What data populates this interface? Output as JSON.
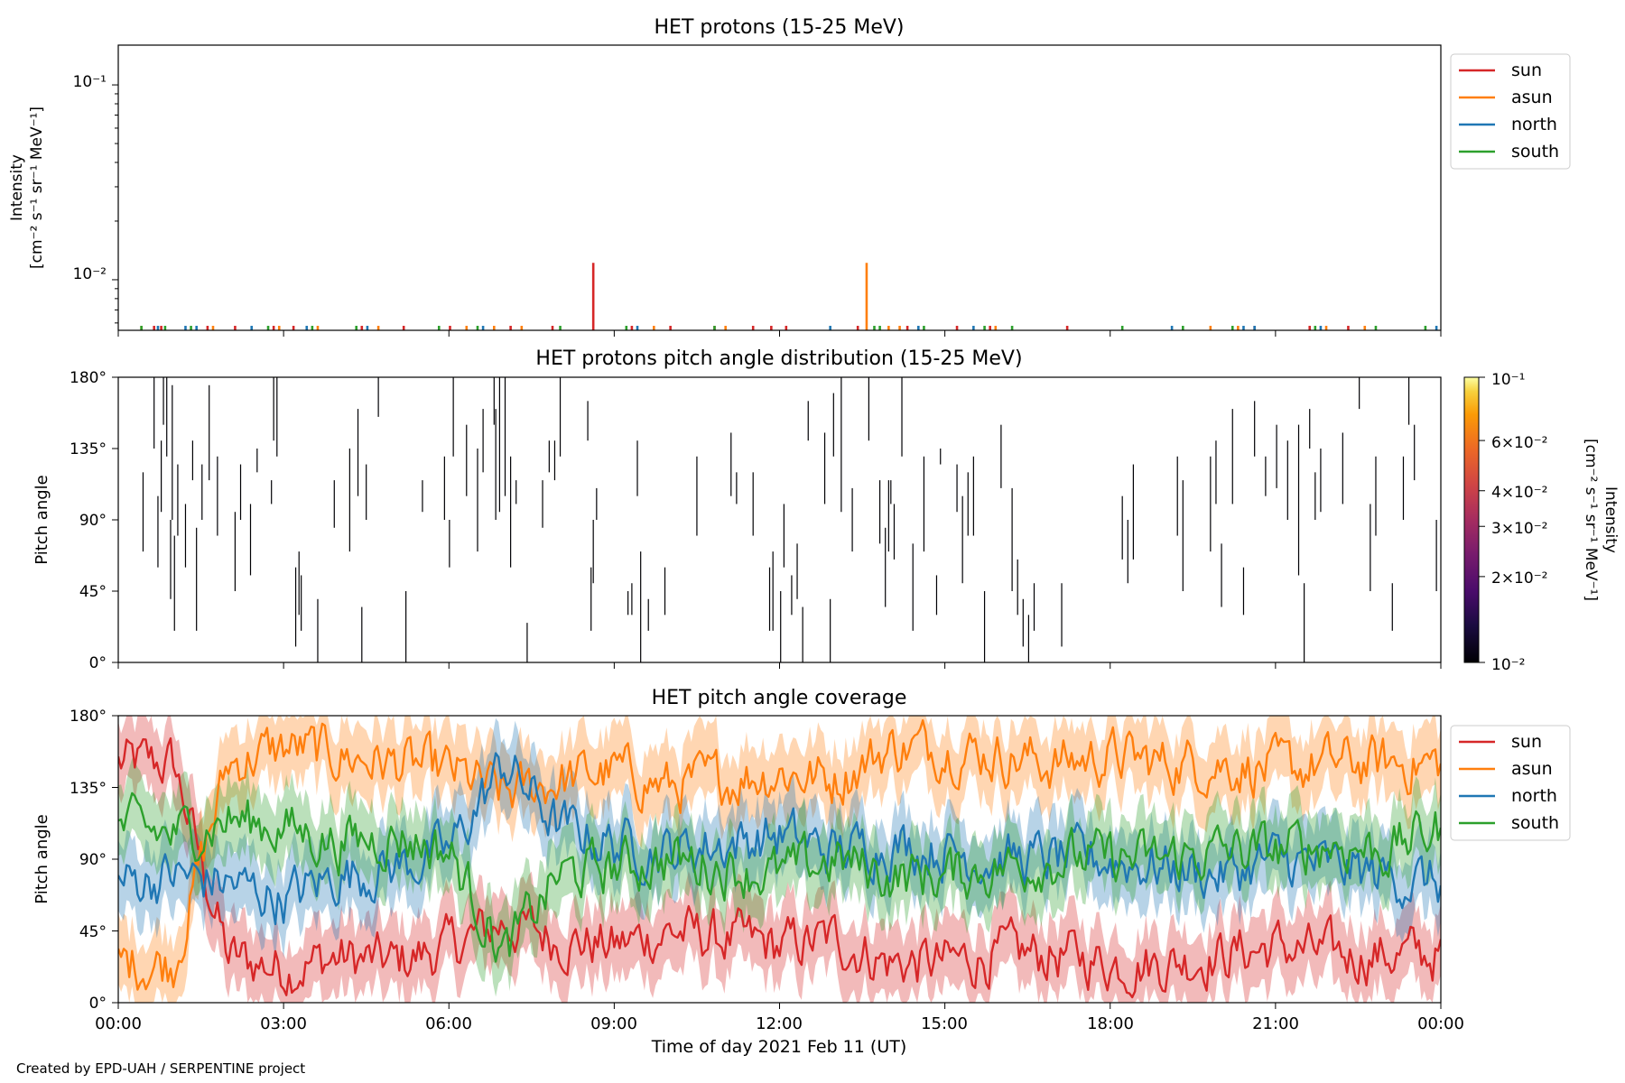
{
  "footer": "Created by EPD-UAH / SERPENTINE project",
  "chart_data": [
    {
      "type": "bar",
      "title": "HET protons (15-25 MeV)",
      "ylabel_lines": [
        "Intensity",
        "[cm⁻² s⁻¹ sr⁻¹ MeV⁻¹]"
      ],
      "yscale": "log",
      "ylim": [
        0.0055,
        0.16
      ],
      "yticks": [
        {
          "value": 0.1,
          "label": "10⁻¹"
        },
        {
          "value": 0.01,
          "label": "10⁻²"
        }
      ],
      "xlim": [
        0,
        24
      ],
      "legend": "right",
      "series": [
        {
          "name": "sun",
          "color": "#d62728",
          "x": [
            0.65,
            0.78,
            1.62,
            2.12,
            2.82,
            3.18,
            4.42,
            5.18,
            6.02,
            7.12,
            7.88,
            8.62,
            9.32,
            10.02,
            10.82,
            11.52,
            11.85,
            12.12,
            13.42,
            14.32,
            15.22,
            15.82,
            17.22,
            20.62,
            21.62,
            22.32
          ],
          "y": [
            0.0058,
            0.0058,
            0.0058,
            0.0058,
            0.0058,
            0.0058,
            0.0058,
            0.0058,
            0.0058,
            0.0058,
            0.0058,
            0.0122,
            0.0058,
            0.0058,
            0.0058,
            0.0058,
            0.0058,
            0.0058,
            0.0058,
            0.0058,
            0.0058,
            0.0058,
            0.0058,
            0.0058,
            0.0058,
            0.0058
          ]
        },
        {
          "name": "asun",
          "color": "#ff7f0e",
          "x": [
            0.42,
            1.72,
            2.92,
            3.62,
            4.72,
            6.32,
            6.82,
            7.32,
            9.72,
            11.02,
            13.58,
            13.98,
            14.18,
            15.92,
            19.82,
            20.32,
            21.92,
            22.62
          ],
          "y": [
            0.0058,
            0.0058,
            0.0058,
            0.0058,
            0.0058,
            0.0058,
            0.0058,
            0.0058,
            0.0058,
            0.0058,
            0.0122,
            0.0058,
            0.0058,
            0.0058,
            0.0058,
            0.0058,
            0.0058,
            0.0058
          ]
        },
        {
          "name": "north",
          "color": "#1f77b4",
          "x": [
            0.72,
            1.22,
            1.42,
            2.42,
            3.42,
            4.52,
            6.62,
            9.42,
            12.92,
            14.52,
            15.52,
            19.12,
            20.42,
            20.62,
            21.82,
            23.92
          ],
          "y": [
            0.0058,
            0.0058,
            0.0058,
            0.0058,
            0.0058,
            0.0058,
            0.0058,
            0.0058,
            0.0058,
            0.0058,
            0.0058,
            0.0058,
            0.0058,
            0.0058,
            0.0058,
            0.0058
          ]
        },
        {
          "name": "south",
          "color": "#2ca02c",
          "x": [
            0.42,
            0.85,
            1.32,
            2.72,
            3.52,
            4.32,
            5.82,
            6.52,
            8.02,
            9.22,
            10.82,
            13.72,
            13.82,
            14.62,
            15.72,
            16.22,
            18.22,
            19.32,
            20.22,
            21.72,
            22.82,
            23.72
          ],
          "y": [
            0.0058,
            0.0058,
            0.0058,
            0.0058,
            0.0058,
            0.0058,
            0.0058,
            0.0058,
            0.0058,
            0.0058,
            0.0058,
            0.0058,
            0.0058,
            0.0058,
            0.0058,
            0.0058,
            0.0058,
            0.0058,
            0.0058,
            0.0058,
            0.0058,
            0.0058
          ]
        }
      ]
    },
    {
      "type": "heatmap",
      "title": "HET protons pitch angle distribution (15-25 MeV)",
      "ylabel": "Pitch angle",
      "ylim": [
        0,
        180
      ],
      "yticks": [
        "0°",
        "45°",
        "90°",
        "135°",
        "180°"
      ],
      "xlim": [
        0,
        24
      ],
      "colorbar": {
        "label_lines": [
          "Intensity",
          "[cm⁻² s⁻¹ sr⁻¹ MeV⁻¹]"
        ],
        "scale": "log",
        "range": [
          0.01,
          0.1
        ],
        "ticks": [
          {
            "value": 0.1,
            "label": "10⁻¹"
          },
          {
            "value": 0.06,
            "label": "6×10⁻²"
          },
          {
            "value": 0.04,
            "label": "4×10⁻²"
          },
          {
            "value": 0.03,
            "label": "3×10⁻²"
          },
          {
            "value": 0.02,
            "label": "2×10⁻²"
          },
          {
            "value": 0.01,
            "label": "10⁻²"
          }
        ]
      },
      "cells": [
        [
          0.45,
          70,
          120
        ],
        [
          0.65,
          135,
          180
        ],
        [
          0.72,
          60,
          105
        ],
        [
          0.78,
          95,
          140
        ],
        [
          0.82,
          150,
          180
        ],
        [
          0.88,
          130,
          180
        ],
        [
          0.95,
          40,
          90
        ],
        [
          0.98,
          90,
          175
        ],
        [
          1.02,
          20,
          80
        ],
        [
          1.08,
          80,
          125
        ],
        [
          1.22,
          60,
          100
        ],
        [
          1.35,
          115,
          140
        ],
        [
          1.42,
          20,
          85
        ],
        [
          1.52,
          90,
          125
        ],
        [
          1.65,
          115,
          175
        ],
        [
          1.8,
          80,
          130
        ],
        [
          2.12,
          45,
          95
        ],
        [
          2.22,
          90,
          125
        ],
        [
          2.4,
          55,
          100
        ],
        [
          2.52,
          120,
          135
        ],
        [
          2.78,
          100,
          115
        ],
        [
          2.82,
          140,
          180
        ],
        [
          2.88,
          130,
          180
        ],
        [
          3.22,
          10,
          60
        ],
        [
          3.28,
          30,
          70
        ],
        [
          3.32,
          20,
          55
        ],
        [
          3.62,
          0,
          40
        ],
        [
          3.92,
          85,
          115
        ],
        [
          4.2,
          70,
          135
        ],
        [
          4.35,
          105,
          160
        ],
        [
          4.42,
          0,
          35
        ],
        [
          4.5,
          90,
          125
        ],
        [
          4.72,
          155,
          180
        ],
        [
          5.22,
          0,
          45
        ],
        [
          5.52,
          95,
          115
        ],
        [
          5.92,
          90,
          130
        ],
        [
          6.01,
          60,
          90
        ],
        [
          6.08,
          130,
          180
        ],
        [
          6.32,
          105,
          150
        ],
        [
          6.52,
          70,
          135
        ],
        [
          6.62,
          120,
          160
        ],
        [
          6.82,
          150,
          180
        ],
        [
          6.85,
          90,
          160
        ],
        [
          6.92,
          95,
          180
        ],
        [
          7.02,
          105,
          180
        ],
        [
          7.12,
          60,
          130
        ],
        [
          7.22,
          100,
          115
        ],
        [
          7.42,
          0,
          25
        ],
        [
          7.7,
          85,
          115
        ],
        [
          7.82,
          120,
          140
        ],
        [
          7.92,
          115,
          140
        ],
        [
          8.02,
          130,
          180
        ],
        [
          8.52,
          140,
          165
        ],
        [
          8.58,
          20,
          60
        ],
        [
          8.62,
          50,
          90
        ],
        [
          8.68,
          90,
          110
        ],
        [
          9.25,
          30,
          45
        ],
        [
          9.32,
          30,
          50
        ],
        [
          9.42,
          105,
          140
        ],
        [
          9.48,
          0,
          70
        ],
        [
          9.62,
          20,
          40
        ],
        [
          9.92,
          30,
          60
        ],
        [
          10.5,
          80,
          130
        ],
        [
          11.12,
          105,
          145
        ],
        [
          11.22,
          100,
          120
        ],
        [
          11.52,
          80,
          120
        ],
        [
          11.82,
          20,
          60
        ],
        [
          11.88,
          20,
          70
        ],
        [
          12.02,
          0,
          45
        ],
        [
          12.08,
          60,
          100
        ],
        [
          12.22,
          30,
          55
        ],
        [
          12.32,
          40,
          75
        ],
        [
          12.42,
          0,
          35
        ],
        [
          12.52,
          140,
          165
        ],
        [
          12.82,
          100,
          145
        ],
        [
          12.92,
          0,
          40
        ],
        [
          12.98,
          130,
          170
        ],
        [
          13.12,
          95,
          180
        ],
        [
          13.32,
          70,
          110
        ],
        [
          13.62,
          140,
          180
        ],
        [
          13.82,
          75,
          115
        ],
        [
          13.92,
          35,
          85
        ],
        [
          13.98,
          70,
          115
        ],
        [
          14.02,
          100,
          115
        ],
        [
          14.08,
          65,
          100
        ],
        [
          14.22,
          130,
          180
        ],
        [
          14.42,
          20,
          75
        ],
        [
          14.62,
          70,
          130
        ],
        [
          14.85,
          30,
          55
        ],
        [
          14.92,
          125,
          135
        ],
        [
          15.22,
          95,
          125
        ],
        [
          15.32,
          50,
          105
        ],
        [
          15.42,
          80,
          120
        ],
        [
          15.52,
          80,
          130
        ],
        [
          15.72,
          0,
          45
        ],
        [
          16.02,
          110,
          150
        ],
        [
          16.22,
          45,
          110
        ],
        [
          16.32,
          30,
          65
        ],
        [
          16.42,
          10,
          40
        ],
        [
          16.52,
          0,
          30
        ],
        [
          16.62,
          20,
          50
        ],
        [
          17.12,
          10,
          50
        ],
        [
          18.22,
          65,
          105
        ],
        [
          18.32,
          50,
          90
        ],
        [
          18.42,
          65,
          125
        ],
        [
          19.22,
          80,
          130
        ],
        [
          19.32,
          45,
          115
        ],
        [
          19.82,
          70,
          130
        ],
        [
          19.92,
          100,
          140
        ],
        [
          20.02,
          35,
          75
        ],
        [
          20.22,
          100,
          160
        ],
        [
          20.42,
          30,
          60
        ],
        [
          20.62,
          130,
          165
        ],
        [
          20.82,
          105,
          130
        ],
        [
          21.02,
          110,
          150
        ],
        [
          21.22,
          90,
          140
        ],
        [
          21.42,
          55,
          150
        ],
        [
          21.52,
          0,
          50
        ],
        [
          21.62,
          135,
          160
        ],
        [
          21.72,
          90,
          120
        ],
        [
          21.82,
          95,
          135
        ],
        [
          22.22,
          100,
          145
        ],
        [
          22.52,
          160,
          180
        ],
        [
          22.72,
          45,
          100
        ],
        [
          22.82,
          80,
          130
        ],
        [
          23.12,
          20,
          50
        ],
        [
          23.32,
          90,
          130
        ],
        [
          23.42,
          150,
          180
        ],
        [
          23.52,
          115,
          150
        ],
        [
          23.92,
          45,
          90
        ]
      ]
    },
    {
      "type": "line",
      "title": "HET pitch angle coverage",
      "ylabel": "Pitch angle",
      "xlabel": "Time of day 2021 Feb 11 (UT)",
      "ylim": [
        0,
        180
      ],
      "yticks": [
        "0°",
        "45°",
        "90°",
        "135°",
        "180°"
      ],
      "xlim": [
        0,
        24
      ],
      "xticks": [
        "00:00",
        "03:00",
        "06:00",
        "09:00",
        "12:00",
        "15:00",
        "18:00",
        "21:00",
        "00:00"
      ],
      "legend": "right",
      "band": "shaded ± range",
      "series": [
        {
          "name": "sun",
          "color": "#d62728",
          "x": [
            0,
            1,
            2,
            3,
            4,
            5,
            6,
            7,
            8,
            9,
            10,
            11,
            12,
            13,
            14,
            15,
            16,
            17,
            18,
            19,
            20,
            21,
            22,
            23,
            24
          ],
          "y": [
            150,
            150,
            28,
            22,
            28,
            25,
            35,
            50,
            40,
            35,
            45,
            40,
            35,
            40,
            25,
            25,
            30,
            30,
            25,
            25,
            30,
            35,
            30,
            30,
            30
          ]
        },
        {
          "name": "asun",
          "color": "#ff7f0e",
          "x": [
            0,
            1,
            2,
            3,
            4,
            5,
            6,
            7,
            8,
            9,
            10,
            11,
            12,
            13,
            14,
            15,
            16,
            17,
            18,
            19,
            20,
            21,
            22,
            23,
            24
          ],
          "y": [
            25,
            25,
            150,
            160,
            155,
            150,
            145,
            130,
            140,
            145,
            135,
            140,
            145,
            140,
            160,
            160,
            155,
            150,
            155,
            150,
            150,
            145,
            150,
            150,
            150
          ]
        },
        {
          "name": "north",
          "color": "#1f77b4",
          "x": [
            0,
            1,
            2,
            3,
            4,
            5,
            6,
            7,
            8,
            9,
            10,
            11,
            12,
            13,
            14,
            15,
            16,
            17,
            18,
            19,
            20,
            21,
            22,
            23,
            24
          ],
          "y": [
            75,
            80,
            75,
            65,
            80,
            85,
            95,
            150,
            110,
            100,
            95,
            100,
            105,
            95,
            100,
            95,
            90,
            90,
            90,
            85,
            80,
            90,
            85,
            80,
            75
          ]
        },
        {
          "name": "south",
          "color": "#2ca02c",
          "x": [
            0,
            1,
            2,
            3,
            4,
            5,
            6,
            7,
            8,
            9,
            10,
            11,
            12,
            13,
            14,
            15,
            16,
            17,
            18,
            19,
            20,
            21,
            22,
            23,
            24
          ],
          "y": [
            110,
            105,
            115,
            110,
            100,
            105,
            95,
            30,
            80,
            85,
            90,
            85,
            80,
            90,
            80,
            80,
            85,
            90,
            90,
            90,
            95,
            95,
            100,
            95,
            110
          ]
        }
      ]
    }
  ]
}
